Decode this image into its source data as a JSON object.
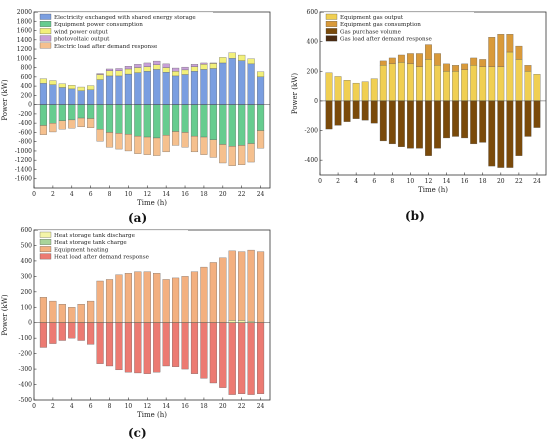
{
  "chart_data": [
    {
      "panel": "(a)",
      "type": "bar",
      "stacked": true,
      "xlabel": "Time (h)",
      "ylabel": "Power (kW)",
      "ylim": [
        -1800,
        2000
      ],
      "yticks": [
        -1600,
        -1400,
        -1200,
        -1000,
        -800,
        -600,
        -400,
        -200,
        0,
        200,
        400,
        600,
        800,
        1000,
        1200,
        1400,
        1600,
        1800,
        2000
      ],
      "xlim": [
        0,
        25
      ],
      "xticks": [
        0,
        2,
        4,
        6,
        8,
        10,
        12,
        14,
        16,
        18,
        20,
        22,
        24
      ],
      "legend_position": "top-left",
      "hours": [
        1,
        2,
        3,
        4,
        5,
        6,
        7,
        8,
        9,
        10,
        11,
        12,
        13,
        14,
        15,
        16,
        17,
        18,
        19,
        20,
        21,
        22,
        23,
        24
      ],
      "series": [
        {
          "name": "Electricity exchanged with shared energy storage",
          "color": "#7a9ee0",
          "values": [
            460,
            430,
            370,
            340,
            300,
            320,
            540,
            620,
            620,
            660,
            690,
            720,
            760,
            700,
            620,
            650,
            720,
            760,
            780,
            900,
            1000,
            950,
            880,
            600
          ]
        },
        {
          "name": "Equipment power consumption",
          "color": "#66cc8f",
          "values": [
            -450,
            -400,
            -350,
            -330,
            -290,
            -300,
            -530,
            -600,
            -620,
            -640,
            -680,
            -700,
            -720,
            -660,
            -580,
            -600,
            -680,
            -700,
            -760,
            -860,
            -900,
            -880,
            -840,
            -560
          ]
        },
        {
          "name": "wind power output",
          "color": "#f2f07a",
          "values": [
            100,
            90,
            80,
            80,
            80,
            90,
            110,
            110,
            110,
            110,
            110,
            100,
            100,
            100,
            100,
            100,
            100,
            110,
            110,
            120,
            120,
            120,
            110,
            110
          ]
        },
        {
          "name": "photovoltaic output",
          "color": "#c8a0d8",
          "values": [
            0,
            0,
            0,
            0,
            0,
            0,
            20,
            40,
            50,
            60,
            70,
            80,
            80,
            80,
            70,
            60,
            50,
            30,
            10,
            0,
            0,
            0,
            0,
            0
          ]
        },
        {
          "name": "Electric load after demand response",
          "color": "#f5c08e",
          "values": [
            -200,
            -190,
            -180,
            -180,
            -190,
            -200,
            -260,
            -320,
            -340,
            -360,
            -380,
            -380,
            -380,
            -360,
            -300,
            -320,
            -340,
            -380,
            -380,
            -400,
            -420,
            -420,
            -400,
            -380
          ]
        }
      ]
    },
    {
      "panel": "(b)",
      "type": "bar",
      "stacked": true,
      "xlabel": "Time (h)",
      "ylabel": "Power (kW)",
      "ylim": [
        -500,
        600
      ],
      "yticks": [
        -400,
        -200,
        0,
        200,
        400,
        600
      ],
      "xlim": [
        0,
        25
      ],
      "xticks": [
        0,
        2,
        4,
        6,
        8,
        10,
        12,
        14,
        16,
        18,
        20,
        22,
        24
      ],
      "legend_position": "top-left",
      "hours": [
        1,
        2,
        3,
        4,
        5,
        6,
        7,
        8,
        9,
        10,
        11,
        12,
        13,
        14,
        15,
        16,
        17,
        18,
        19,
        20,
        21,
        22,
        23,
        24
      ],
      "series": [
        {
          "name": "Equipment gas output",
          "color": "#f0cf52",
          "values": [
            190,
            165,
            140,
            120,
            130,
            150,
            240,
            250,
            260,
            250,
            230,
            280,
            240,
            200,
            200,
            210,
            240,
            230,
            230,
            230,
            330,
            280,
            200,
            180
          ]
        },
        {
          "name": "Equipment gas consumption",
          "color": "#d99a3a",
          "values": [
            0,
            0,
            0,
            0,
            0,
            0,
            30,
            40,
            50,
            70,
            90,
            100,
            80,
            50,
            40,
            40,
            50,
            50,
            200,
            220,
            120,
            90,
            40,
            0
          ]
        },
        {
          "name": "Gas purchase volume",
          "color": "#7a4a0a",
          "values": [
            -190,
            -165,
            -140,
            -120,
            -130,
            -150,
            -270,
            -290,
            -310,
            -320,
            -320,
            -370,
            -320,
            -250,
            -240,
            -250,
            -290,
            -280,
            -440,
            -450,
            -450,
            -370,
            -240,
            -180
          ]
        },
        {
          "name": "Gas load after demand response",
          "color": "#4a2a10",
          "values": [
            0,
            0,
            0,
            0,
            0,
            0,
            0,
            0,
            0,
            0,
            0,
            0,
            0,
            0,
            0,
            0,
            0,
            0,
            0,
            0,
            0,
            0,
            0,
            0
          ]
        }
      ]
    },
    {
      "panel": "(c)",
      "type": "bar",
      "stacked": true,
      "xlabel": "Time (h)",
      "ylabel": "Power (kW)",
      "ylim": [
        -500,
        600
      ],
      "yticks": [
        -500,
        -400,
        -300,
        -200,
        -100,
        0,
        100,
        200,
        300,
        400,
        500,
        600
      ],
      "xlim": [
        0,
        25
      ],
      "xticks": [
        0,
        2,
        4,
        6,
        8,
        10,
        12,
        14,
        16,
        18,
        20,
        22,
        24
      ],
      "legend_position": "top-left",
      "hours": [
        1,
        2,
        3,
        4,
        5,
        6,
        7,
        8,
        9,
        10,
        11,
        12,
        13,
        14,
        15,
        16,
        17,
        18,
        19,
        20,
        21,
        22,
        23,
        24
      ],
      "series": [
        {
          "name": "Heat storage tank discharge",
          "color": "#f4f4a8",
          "values": [
            0,
            0,
            0,
            0,
            0,
            0,
            0,
            0,
            0,
            0,
            0,
            0,
            0,
            0,
            0,
            0,
            0,
            0,
            0,
            0,
            15,
            15,
            10,
            0
          ]
        },
        {
          "name": "Heat storage tank charge",
          "color": "#a9d49a",
          "values": [
            0,
            0,
            0,
            0,
            0,
            0,
            0,
            0,
            0,
            0,
            0,
            0,
            0,
            0,
            0,
            0,
            0,
            0,
            0,
            0,
            0,
            0,
            0,
            0
          ]
        },
        {
          "name": "Equipment heating",
          "color": "#f3b080",
          "values": [
            165,
            140,
            120,
            100,
            120,
            140,
            270,
            280,
            310,
            320,
            330,
            330,
            320,
            280,
            290,
            300,
            330,
            360,
            390,
            420,
            450,
            445,
            460,
            460
          ]
        },
        {
          "name": "Heat load after demand response",
          "color": "#ec7a72",
          "values": [
            -160,
            -135,
            -115,
            -100,
            -115,
            -140,
            -265,
            -280,
            -305,
            -320,
            -325,
            -330,
            -320,
            -280,
            -285,
            -300,
            -330,
            -360,
            -390,
            -420,
            -465,
            -460,
            -465,
            -460
          ]
        }
      ]
    }
  ]
}
